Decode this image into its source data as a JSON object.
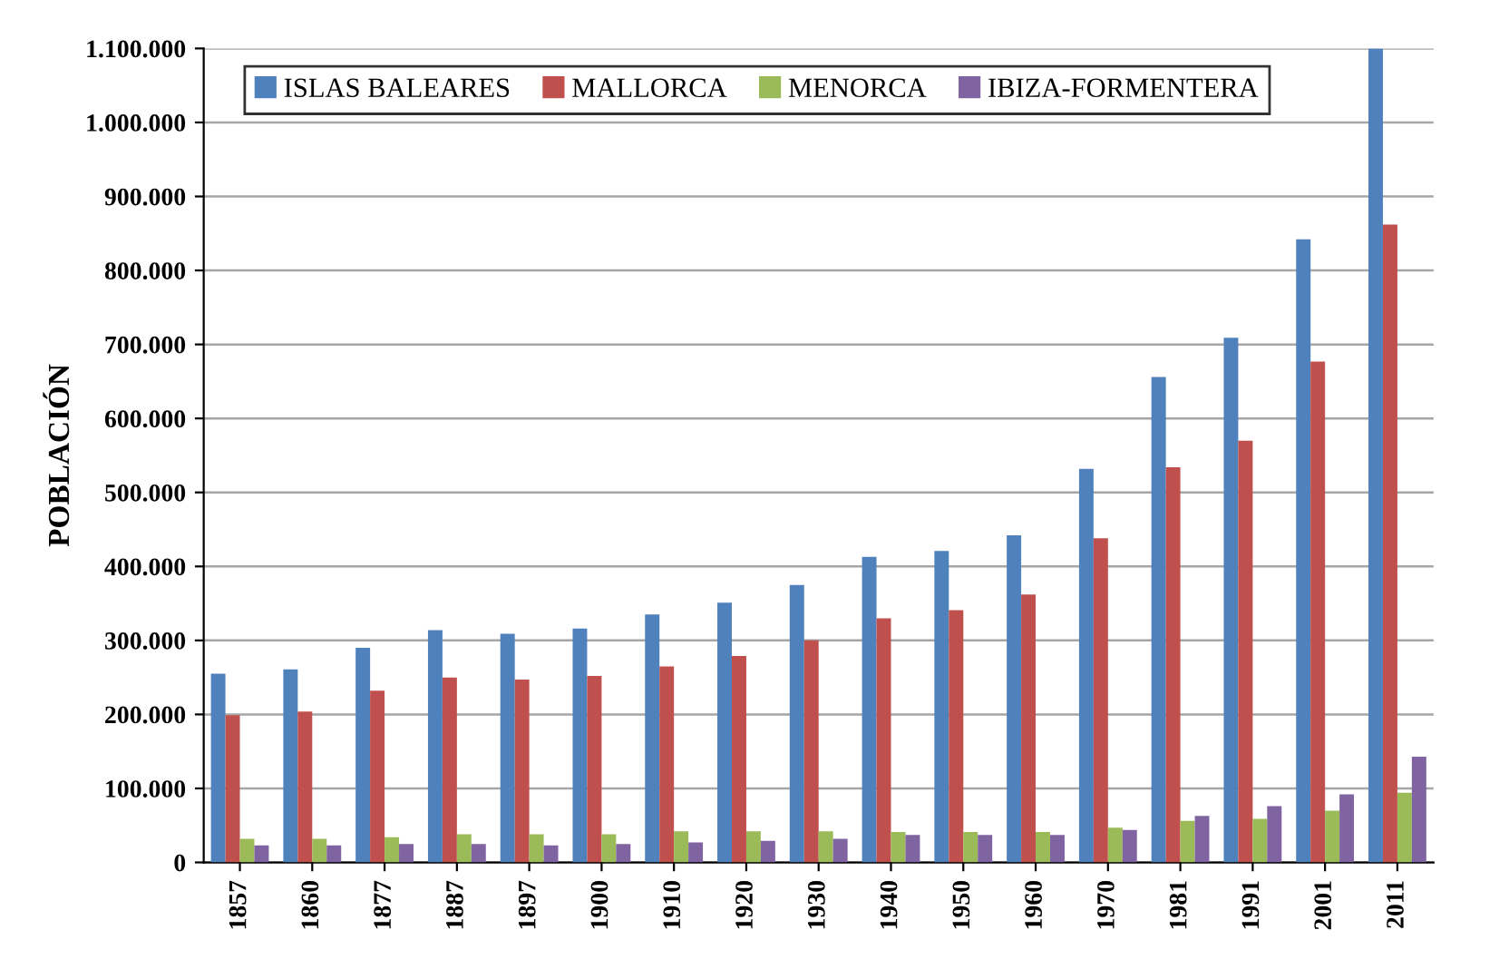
{
  "chart_data": {
    "type": "bar",
    "ylabel": "POBLACIÓN",
    "categories": [
      "1857",
      "1860",
      "1877",
      "1887",
      "1897",
      "1900",
      "1910",
      "1920",
      "1930",
      "1940",
      "1950",
      "1960",
      "1970",
      "1981",
      "1991",
      "2001",
      "2011"
    ],
    "series": [
      {
        "name": "ISLAS BALEARES",
        "color": "#4f81bd",
        "values": [
          255000,
          261000,
          290000,
          314000,
          309000,
          316000,
          335000,
          351000,
          375000,
          413000,
          421000,
          442000,
          532000,
          656000,
          709000,
          842000,
          1100000
        ]
      },
      {
        "name": "MALLORCA",
        "color": "#c0504d",
        "values": [
          199000,
          204000,
          232000,
          250000,
          247000,
          252000,
          265000,
          279000,
          300000,
          330000,
          341000,
          362000,
          438000,
          534000,
          570000,
          677000,
          862000
        ]
      },
      {
        "name": "MENORCA",
        "color": "#9bbb59",
        "values": [
          32000,
          32000,
          34000,
          38000,
          38000,
          38000,
          42000,
          42000,
          42000,
          41000,
          41000,
          41000,
          47000,
          56000,
          59000,
          70000,
          94000
        ]
      },
      {
        "name": "IBIZA-FORMENTERA",
        "color": "#8064a2",
        "values": [
          23000,
          23000,
          25000,
          25000,
          23000,
          25000,
          27000,
          29000,
          32000,
          37000,
          37000,
          37000,
          44000,
          63000,
          76000,
          92000,
          143000
        ]
      }
    ],
    "ylim": [
      0,
      1100000
    ],
    "yticks": [
      0,
      {
        "value": 100000,
        "label": "100.000"
      },
      {
        "value": 200000,
        "label": "200.000"
      },
      {
        "value": 300000,
        "label": "300.000"
      },
      {
        "value": 400000,
        "label": "400.000"
      },
      {
        "value": 500000,
        "label": "500.000"
      },
      {
        "value": 600000,
        "label": "600.000"
      },
      {
        "value": 700000,
        "label": "700.000"
      },
      {
        "value": 800000,
        "label": "800.000"
      },
      {
        "value": 900000,
        "label": "900.000"
      },
      {
        "value": 1000000,
        "label": "1.000.000"
      },
      {
        "value": 1100000,
        "label": "1.100.000"
      }
    ],
    "grid": "y",
    "legend": "top"
  }
}
